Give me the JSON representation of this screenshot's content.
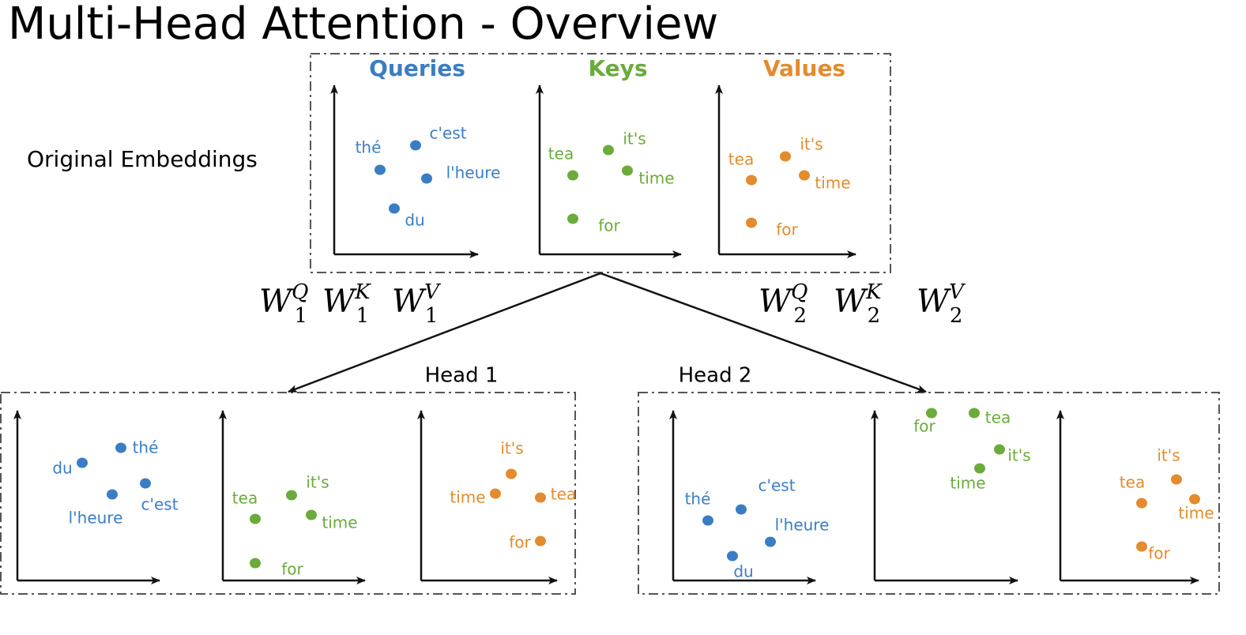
{
  "title": "Multi-Head Attention -  Overview",
  "original_label": "Original Embeddings",
  "colors": [
    "#3b7dc4",
    "#6aab3b",
    "#e38b2d"
  ],
  "original": {
    "panels": [
      {
        "title": "Queries",
        "words": [
          "thé",
          "c'est",
          "l'heure",
          "du"
        ]
      },
      {
        "title": "Keys",
        "words": [
          "tea",
          "it's",
          "time",
          "for"
        ]
      },
      {
        "title": "Values",
        "words": [
          "tea",
          "it's",
          "time",
          "for"
        ]
      }
    ]
  },
  "weights": [
    [
      {
        "base": "W",
        "sub": "1",
        "sup": "Q"
      },
      {
        "base": "W",
        "sub": "1",
        "sup": "K"
      },
      {
        "base": "W",
        "sub": "1",
        "sup": "V"
      }
    ],
    [
      {
        "base": "W",
        "sub": "2",
        "sup": "Q"
      },
      {
        "base": "W",
        "sub": "2",
        "sup": "K"
      },
      {
        "base": "W",
        "sub": "2",
        "sup": "V"
      }
    ]
  ],
  "heads": [
    {
      "label": "Head 1",
      "panels": [
        {
          "words": [
            "thé",
            "du",
            "c'est",
            "l'heure"
          ]
        },
        {
          "words": [
            "tea",
            "it's",
            "time",
            "for"
          ]
        },
        {
          "words": [
            "it's",
            "time",
            "tea",
            "for"
          ]
        }
      ]
    },
    {
      "label": "Head 2",
      "panels": [
        {
          "words": [
            "thé",
            "c'est",
            "l'heure",
            "du"
          ]
        },
        {
          "words": [
            "for",
            "tea",
            "it's",
            "time"
          ]
        },
        {
          "words": [
            "it's",
            "tea",
            "time",
            "for"
          ]
        }
      ]
    }
  ]
}
